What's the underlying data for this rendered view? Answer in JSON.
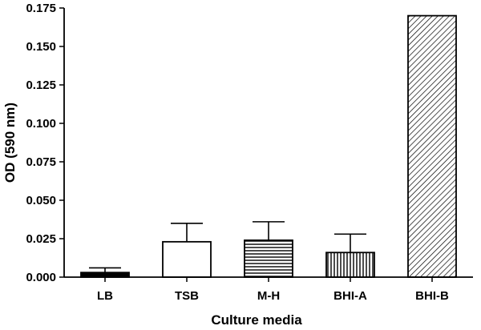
{
  "chart_data": {
    "type": "bar",
    "categories": [
      "LB",
      "TSB",
      "M-H",
      "BHI-A",
      "BHI-B"
    ],
    "values": [
      0.003,
      0.023,
      0.024,
      0.016,
      0.17
    ],
    "errors": [
      0.003,
      0.012,
      0.012,
      0.012,
      0.0
    ],
    "patterns": [
      "solid-black",
      "white",
      "horizontal-lines",
      "vertical-lines",
      "diagonal-lines"
    ],
    "xlabel": "Culture media",
    "ylabel": "OD (590 nm)",
    "ylim": [
      0,
      0.175
    ],
    "yticks": [
      "0.000",
      "0.025",
      "0.050",
      "0.075",
      "0.100",
      "0.125",
      "0.150",
      "0.175"
    ],
    "grid": false,
    "colors": {
      "bar_stroke": "#000000",
      "solid_fill": "#000000",
      "background": "#ffffff"
    }
  }
}
